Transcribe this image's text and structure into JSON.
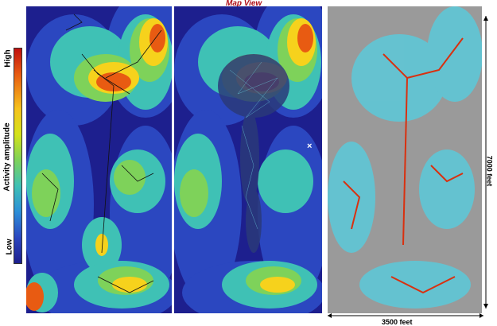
{
  "title": "Map View",
  "colorbar": {
    "high_label": "High",
    "low_label": "Low",
    "axis_label": "Activity amplitude"
  },
  "scale": {
    "horizontal_label": "3500 feet",
    "vertical_label": "7000 feet"
  },
  "marker": "×",
  "colors": {
    "low": "#1d1f8e",
    "mid_blue": "#2b47c0",
    "cyan": "#3fc1b5",
    "green": "#7ed25a",
    "yellow": "#f6d21c",
    "orange": "#e85b12",
    "high": "#c01010",
    "gray_bg": "#9a9a9a",
    "title": "#b0101a"
  },
  "panels": [
    {
      "name": "activity-map-with-fractures"
    },
    {
      "name": "activity-map-with-events"
    },
    {
      "name": "thresholded-activity-map"
    }
  ]
}
